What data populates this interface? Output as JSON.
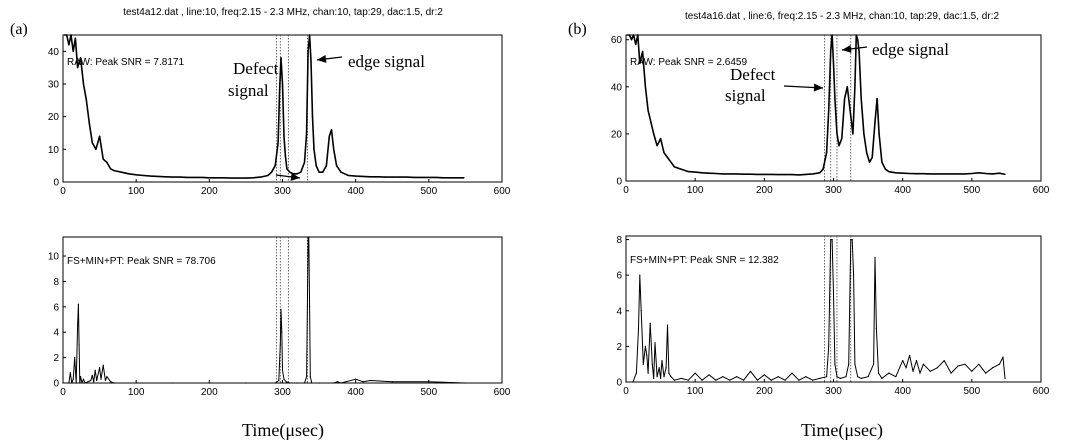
{
  "panels": [
    {
      "label": "(a)",
      "title": "test4a12.dat , line:10, freq:2.15 - 2.3 MHz, chan:10, tap:29, dac:1.5, dr:2",
      "xlabel": "Time(μsec)"
    },
    {
      "label": "(b)",
      "title": "test4a16.dat , line:6, freq:2.15 - 2.3 MHz, chan:10, tap:29, dac:1.5, dr:2",
      "xlabel": "Time(μsec)"
    }
  ],
  "chart_data": [
    {
      "type": "line",
      "panel": "(a)",
      "position": "top",
      "legend_text": "RAW: Peak SNR = 7.8171",
      "annotations": [
        "Defect signal",
        "edge signal"
      ],
      "xlim": [
        0,
        600
      ],
      "ylim": [
        0,
        45
      ],
      "xticks": [
        0,
        100,
        200,
        300,
        400,
        500,
        600
      ],
      "yticks": [
        0,
        10,
        20,
        30,
        40
      ],
      "gates": [
        292,
        297,
        308,
        334
      ],
      "series": [
        {
          "x": [
            2,
            5,
            8,
            11,
            14,
            17,
            20,
            24,
            28,
            32,
            36,
            40,
            45,
            50,
            55,
            60,
            65,
            70,
            80,
            90,
            100,
            110,
            120,
            130,
            140,
            150,
            160,
            170,
            180,
            190,
            200,
            210,
            220,
            230,
            240,
            250,
            260,
            270,
            280,
            285,
            290,
            294,
            296,
            298,
            300,
            302,
            304,
            306,
            310,
            315,
            320,
            325,
            330,
            333,
            335,
            337,
            339,
            341,
            343,
            346,
            350,
            355,
            360,
            364,
            367,
            370,
            374,
            380,
            390,
            400,
            410,
            420,
            430,
            440,
            450,
            460,
            470,
            480,
            490,
            500,
            510,
            520,
            530,
            540,
            548
          ],
          "y": [
            45,
            45,
            42,
            45,
            40,
            44,
            35,
            38,
            30,
            25,
            18,
            12,
            10,
            14,
            7,
            6,
            4,
            3.5,
            3,
            2.5,
            2.2,
            2,
            1.8,
            1.7,
            1.6,
            1.5,
            1.5,
            1.4,
            1.4,
            1.4,
            1.3,
            1.3,
            1.3,
            1.2,
            1.2,
            1.2,
            1.3,
            1.5,
            2,
            3,
            5,
            12,
            28,
            38,
            30,
            14,
            8,
            4,
            3,
            2.5,
            2.5,
            3,
            6,
            15,
            40,
            45,
            37,
            20,
            10,
            5,
            3,
            3,
            5,
            14,
            16,
            10,
            5,
            3,
            2,
            1.8,
            1.7,
            1.6,
            1.6,
            1.5,
            1.5,
            1.5,
            1.5,
            1.4,
            1.4,
            1.4,
            1.4,
            1.3,
            1.3,
            1.3,
            1.3
          ]
        }
      ]
    },
    {
      "type": "line",
      "panel": "(a)",
      "position": "bottom",
      "legend_text": "FS+MIN+PT: Peak SNR = 78.706",
      "xlim": [
        0,
        600
      ],
      "ylim": [
        0,
        11.5
      ],
      "xticks": [
        0,
        100,
        200,
        300,
        400,
        500,
        600
      ],
      "yticks": [
        0,
        2,
        4,
        6,
        8,
        10
      ],
      "gates": [
        292,
        297,
        308,
        334
      ],
      "series": [
        {
          "x": [
            0,
            8,
            10,
            12,
            14,
            16,
            18,
            20,
            21,
            22,
            23,
            24,
            26,
            28,
            30,
            38,
            40,
            42,
            44,
            46,
            50,
            52,
            55,
            58,
            60,
            65,
            70,
            100,
            150,
            200,
            250,
            290,
            295,
            297,
            298,
            299,
            300,
            302,
            305,
            310,
            320,
            330,
            333,
            334,
            335,
            336,
            337,
            338,
            340,
            350,
            370,
            375,
            380,
            400,
            410,
            420,
            450,
            500,
            550
          ],
          "y": [
            0,
            0,
            0.8,
            0,
            0.3,
            2,
            0,
            4.5,
            6.2,
            3,
            0,
            0.5,
            0,
            0.3,
            0,
            0.2,
            0.6,
            0.1,
            1,
            0.2,
            1.2,
            0.3,
            1.4,
            0.2,
            0.5,
            0.1,
            0,
            0,
            0,
            0,
            0,
            0,
            0.2,
            3,
            5.8,
            4,
            1,
            0.3,
            0.1,
            0,
            0,
            0,
            0.5,
            6,
            11.5,
            11.5,
            6,
            0.5,
            0,
            0,
            0,
            0.1,
            0,
            0.3,
            0.1,
            0.2,
            0.1,
            0.1,
            0
          ]
        }
      ]
    },
    {
      "type": "line",
      "panel": "(b)",
      "position": "top",
      "legend_text": "RAW: Peak SNR = 2.6459",
      "annotations": [
        "Defect signal",
        "edge signal"
      ],
      "xlim": [
        0,
        600
      ],
      "ylim": [
        0,
        62
      ],
      "xticks": [
        0,
        100,
        200,
        300,
        400,
        500,
        600
      ],
      "yticks": [
        0,
        20,
        40,
        60
      ],
      "gates": [
        287,
        296,
        305,
        325
      ],
      "series": [
        {
          "x": [
            2,
            5,
            8,
            11,
            14,
            17,
            20,
            24,
            28,
            32,
            36,
            40,
            45,
            50,
            55,
            60,
            65,
            70,
            80,
            90,
            100,
            110,
            120,
            130,
            140,
            150,
            160,
            170,
            180,
            190,
            200,
            210,
            220,
            230,
            240,
            250,
            260,
            270,
            280,
            285,
            290,
            293,
            296,
            298,
            300,
            302,
            305,
            308,
            312,
            316,
            320,
            324,
            328,
            331,
            333,
            335,
            337,
            340,
            344,
            348,
            352,
            356,
            360,
            363,
            366,
            370,
            375,
            380,
            390,
            400,
            410,
            420,
            430,
            440,
            450,
            460,
            470,
            480,
            490,
            500,
            510,
            520,
            530,
            540,
            548
          ],
          "y": [
            62,
            62,
            60,
            62,
            58,
            62,
            50,
            55,
            40,
            30,
            25,
            20,
            15,
            18,
            12,
            10,
            8,
            6,
            5,
            4,
            3.8,
            3.5,
            3.3,
            3.2,
            3,
            3,
            3,
            2.9,
            2.9,
            2.8,
            2.8,
            2.8,
            2.7,
            2.7,
            2.7,
            2.6,
            2.8,
            3,
            3.5,
            5,
            12,
            30,
            55,
            62,
            50,
            35,
            20,
            15,
            18,
            35,
            40,
            30,
            20,
            40,
            62,
            60,
            55,
            35,
            20,
            12,
            8,
            10,
            25,
            35,
            20,
            8,
            5,
            4,
            3.5,
            3.3,
            3.2,
            3.1,
            3.1,
            3,
            3,
            3,
            3,
            3,
            3,
            3.2,
            3.5,
            3.2,
            3,
            3.3,
            2.8
          ]
        }
      ]
    },
    {
      "type": "line",
      "panel": "(b)",
      "position": "bottom",
      "legend_text": "FS+MIN+PT: Peak SNR = 12.382",
      "xlim": [
        0,
        600
      ],
      "ylim": [
        0,
        8.2
      ],
      "xticks": [
        0,
        100,
        200,
        300,
        400,
        500,
        600
      ],
      "yticks": [
        0,
        2,
        4,
        6,
        8
      ],
      "gates": [
        287,
        296,
        305,
        325
      ],
      "series": [
        {
          "x": [
            0,
            10,
            15,
            18,
            20,
            22,
            25,
            28,
            30,
            32,
            35,
            38,
            40,
            42,
            45,
            48,
            50,
            52,
            55,
            58,
            60,
            62,
            65,
            70,
            80,
            90,
            100,
            110,
            120,
            130,
            140,
            150,
            160,
            170,
            180,
            190,
            200,
            210,
            220,
            230,
            240,
            250,
            260,
            270,
            280,
            290,
            293,
            296,
            298,
            300,
            302,
            305,
            310,
            318,
            322,
            325,
            327,
            329,
            331,
            335,
            340,
            350,
            358,
            360,
            362,
            365,
            370,
            380,
            390,
            400,
            405,
            410,
            415,
            420,
            425,
            430,
            440,
            450,
            460,
            470,
            480,
            490,
            500,
            510,
            520,
            530,
            540,
            545,
            548
          ],
          "y": [
            0,
            0,
            0.5,
            3,
            6,
            4,
            1,
            2,
            1.5,
            0.5,
            3.3,
            1,
            0.2,
            2.2,
            0.3,
            0.8,
            0.2,
            1.2,
            0.3,
            0.8,
            3.2,
            0.5,
            0.3,
            0.1,
            0.2,
            0.1,
            0.5,
            0.1,
            0.4,
            0.1,
            0.3,
            0.1,
            0.3,
            0.1,
            0.6,
            0.1,
            0.4,
            0.1,
            0.3,
            0.1,
            0.5,
            0.1,
            0.3,
            0.1,
            0.2,
            0.3,
            2,
            8,
            8,
            5,
            1,
            0.3,
            0.2,
            0.3,
            1,
            8,
            8,
            6,
            1,
            0.3,
            0.2,
            0.3,
            1,
            7,
            3,
            0.5,
            0.2,
            0.5,
            0.3,
            1.2,
            0.8,
            1.5,
            0.6,
            1.2,
            0.5,
            1,
            0.6,
            0.8,
            1.2,
            0.5,
            0.9,
            1,
            0.6,
            1,
            0.5,
            0.8,
            1,
            1.4,
            0.2
          ]
        }
      ]
    }
  ]
}
